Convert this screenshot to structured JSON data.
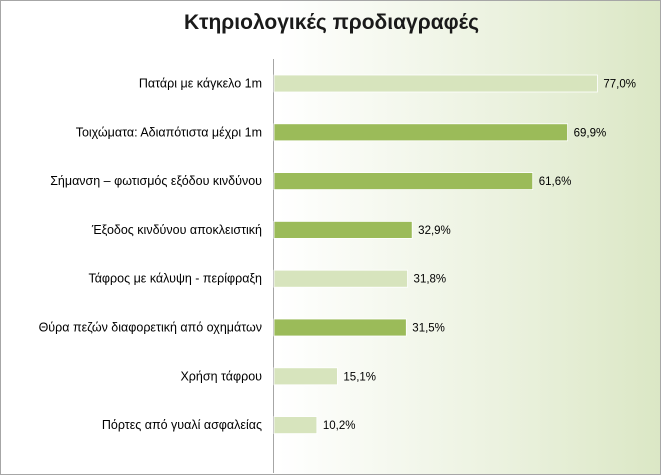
{
  "chart_data": {
    "type": "bar",
    "orientation": "horizontal",
    "title": "Κτηριολογικές προδιαγραφές",
    "categories": [
      "Πατάρι με κάγκελο 1m",
      "Τοιχώματα: Αδιαπότιστα μέχρι 1m",
      "Σήμανση – φωτισμός εξόδου κινδύνου",
      "Έξοδος κινδύνου αποκλειστική",
      "Τάφρος με κάλυψη - περίφραξη",
      "Θύρα πεζών διαφορετική από οχημάτων",
      "Χρήση τάφρου",
      "Πόρτες από γυαλί ασφαλείας"
    ],
    "values": [
      77.0,
      69.9,
      61.6,
      32.9,
      31.8,
      31.5,
      15.1,
      10.2
    ],
    "value_labels": [
      "77,0%",
      "69,9%",
      "61,6%",
      "32,9%",
      "31,8%",
      "31,5%",
      "15,1%",
      "10,2%"
    ],
    "bar_colors": [
      "#d7e4bd",
      "#9bbb59",
      "#9bbb59",
      "#9bbb59",
      "#d7e4bd",
      "#9bbb59",
      "#d7e4bd",
      "#d7e4bd"
    ],
    "xlim": [
      0,
      100
    ],
    "grid": false,
    "legend": "none"
  }
}
